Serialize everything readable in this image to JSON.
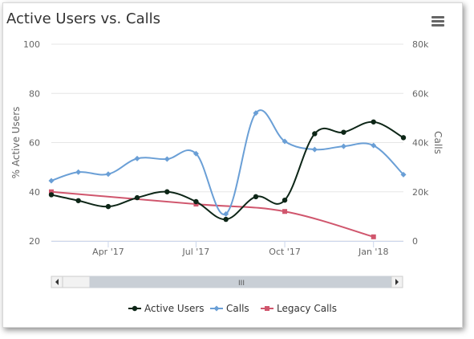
{
  "header": {
    "title": "Active Users vs. Calls"
  },
  "menu": {
    "icon": "hamburger-menu-icon"
  },
  "colors": {
    "active_users": "#0d2617",
    "calls": "#6a9fd6",
    "legacy_calls": "#d0566d",
    "grid": "#e6e6e6",
    "axis_text": "#666666"
  },
  "navigator": {
    "grip_icon": "grip-icon",
    "left_arrow": "arrow-left-icon",
    "right_arrow": "arrow-right-icon",
    "grip_text": "III"
  },
  "chart_data": {
    "type": "line",
    "title": "Active Users vs. Calls",
    "y_left": {
      "label": "% Active Users",
      "min": 20,
      "max": 100,
      "ticks": [
        20,
        40,
        60,
        80,
        100
      ]
    },
    "y_right": {
      "label": "Calls",
      "min": 0,
      "max": 80000,
      "ticks": [
        0,
        20000,
        40000,
        60000,
        80000
      ],
      "tick_labels": [
        "0",
        "20k",
        "40k",
        "60k",
        "80k"
      ]
    },
    "x": {
      "min": "2017-02-01",
      "max": "2018-02-01",
      "ticks": [
        "2017-04-01",
        "2017-07-01",
        "2017-10-01",
        "2018-01-01"
      ],
      "tick_labels": [
        "Apr '17",
        "Jul '17",
        "Oct '17",
        "Jan '18"
      ]
    },
    "legend_position": "bottom",
    "grid": true,
    "series": [
      {
        "name": "Active Users",
        "axis": "left",
        "marker": "circle",
        "points": [
          [
            "2017-02-01",
            38.8
          ],
          [
            "2017-03-01",
            36.4
          ],
          [
            "2017-04-01",
            34.0
          ],
          [
            "2017-05-01",
            37.6
          ],
          [
            "2017-06-01",
            40.0
          ],
          [
            "2017-07-01",
            36.0
          ],
          [
            "2017-08-01",
            28.8
          ],
          [
            "2017-09-01",
            38.0
          ],
          [
            "2017-10-01",
            36.6
          ],
          [
            "2017-11-01",
            63.6
          ],
          [
            "2017-12-01",
            64.2
          ],
          [
            "2018-01-01",
            68.4
          ],
          [
            "2018-02-01",
            62.0
          ]
        ]
      },
      {
        "name": "Calls",
        "axis": "right",
        "marker": "diamond",
        "points": [
          [
            "2017-02-01",
            24500
          ],
          [
            "2017-03-01",
            28000
          ],
          [
            "2017-04-01",
            27200
          ],
          [
            "2017-05-01",
            33500
          ],
          [
            "2017-06-01",
            33300
          ],
          [
            "2017-07-01",
            35500
          ],
          [
            "2017-08-01",
            11000
          ],
          [
            "2017-09-01",
            52000
          ],
          [
            "2017-10-01",
            40500
          ],
          [
            "2017-11-01",
            37200
          ],
          [
            "2017-12-01",
            38500
          ],
          [
            "2018-01-01",
            38800
          ],
          [
            "2018-02-01",
            27000
          ]
        ]
      },
      {
        "name": "Legacy Calls",
        "axis": "right",
        "marker": "square",
        "points": [
          [
            "2017-02-01",
            20000
          ],
          [
            "2017-07-01",
            15000
          ],
          [
            "2017-10-01",
            12000
          ],
          [
            "2018-01-01",
            1700
          ]
        ]
      }
    ]
  }
}
